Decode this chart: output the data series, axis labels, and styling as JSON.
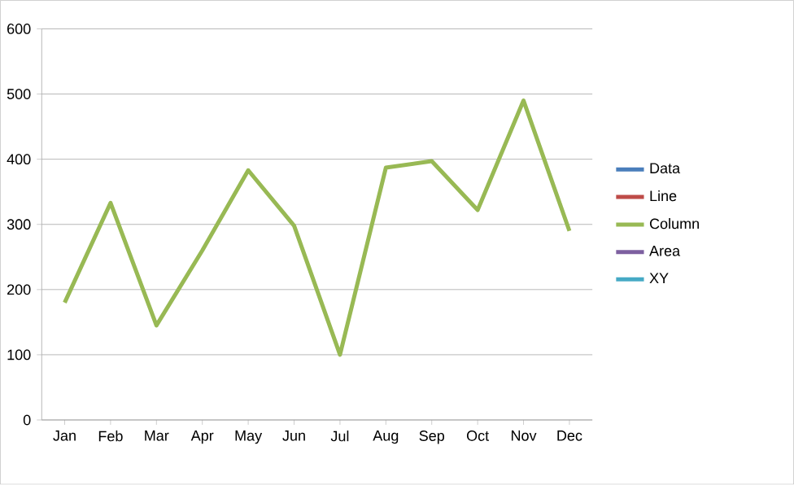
{
  "chart_data": {
    "type": "line",
    "categories": [
      "Jan",
      "Feb",
      "Mar",
      "Apr",
      "May",
      "Jun",
      "Jul",
      "Aug",
      "Sep",
      "Oct",
      "Nov",
      "Dec"
    ],
    "series": [
      {
        "name": "Data",
        "color": "#4a7ebb",
        "values": [
          null,
          null,
          null,
          null,
          null,
          null,
          null,
          null,
          null,
          null,
          null,
          null
        ]
      },
      {
        "name": "Line",
        "color": "#be4b48",
        "values": [
          null,
          null,
          null,
          null,
          null,
          null,
          null,
          null,
          null,
          null,
          null,
          null
        ]
      },
      {
        "name": "Column",
        "color": "#98b954",
        "values": [
          180,
          333,
          145,
          260,
          383,
          298,
          100,
          387,
          397,
          322,
          490,
          290
        ]
      },
      {
        "name": "Area",
        "color": "#7d60a0",
        "values": [
          null,
          null,
          null,
          null,
          null,
          null,
          null,
          null,
          null,
          null,
          null,
          null
        ]
      },
      {
        "name": "XY",
        "color": "#46aac5",
        "values": [
          null,
          null,
          null,
          null,
          null,
          null,
          null,
          null,
          null,
          null,
          null,
          null
        ]
      }
    ],
    "ylim": [
      0,
      600
    ],
    "yticks": [
      0,
      100,
      200,
      300,
      400,
      500,
      600
    ],
    "grid": "y",
    "legend": "right",
    "marker": "none",
    "line_style": "solid"
  }
}
